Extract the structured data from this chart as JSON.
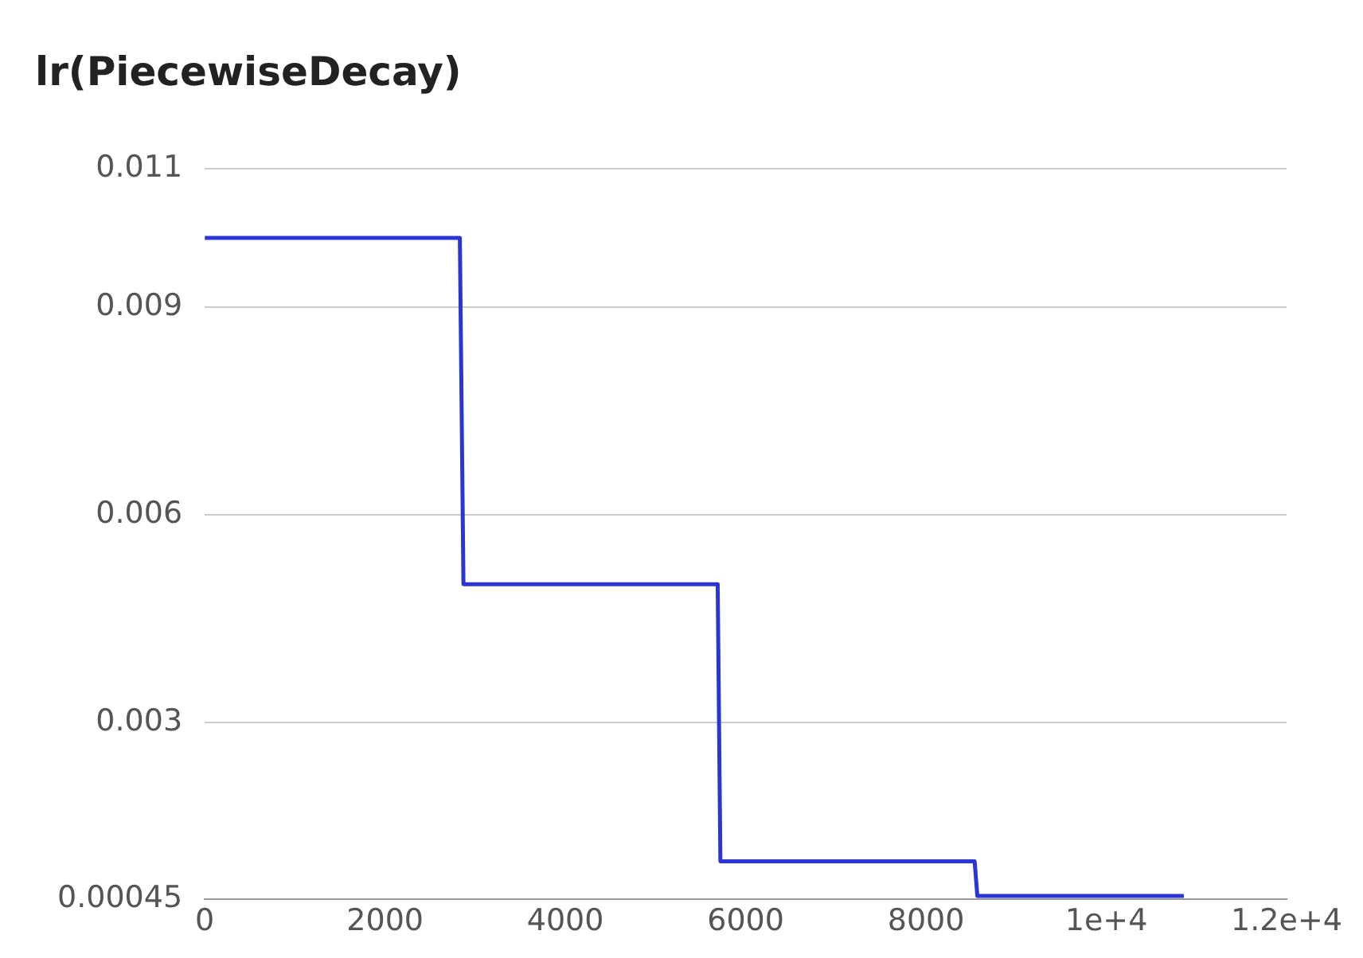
{
  "chart_data": {
    "type": "line",
    "title": "lr(PiecewiseDecay)",
    "x": [
      0,
      2830,
      2870,
      5690,
      5720,
      8540,
      8570,
      10860
    ],
    "series": [
      {
        "color": "#2b35d6",
        "values": [
          0.01,
          0.01,
          0.005,
          0.005,
          0.001,
          0.001,
          0.0005,
          0.0005
        ]
      }
    ],
    "xlim": [
      0,
      12000
    ],
    "xticks": [
      0,
      2000,
      4000,
      6000,
      8000,
      {
        "value": 10000,
        "label": "1e+4"
      },
      {
        "value": 12000,
        "label": "1.2e+4"
      }
    ],
    "ylim": [
      0.00045,
      0.011
    ],
    "yticks": [
      0.00045,
      0.003,
      0.006,
      0.009,
      0.011
    ],
    "grid": "y",
    "legend": false,
    "marker": "none",
    "line_style": "solid"
  }
}
